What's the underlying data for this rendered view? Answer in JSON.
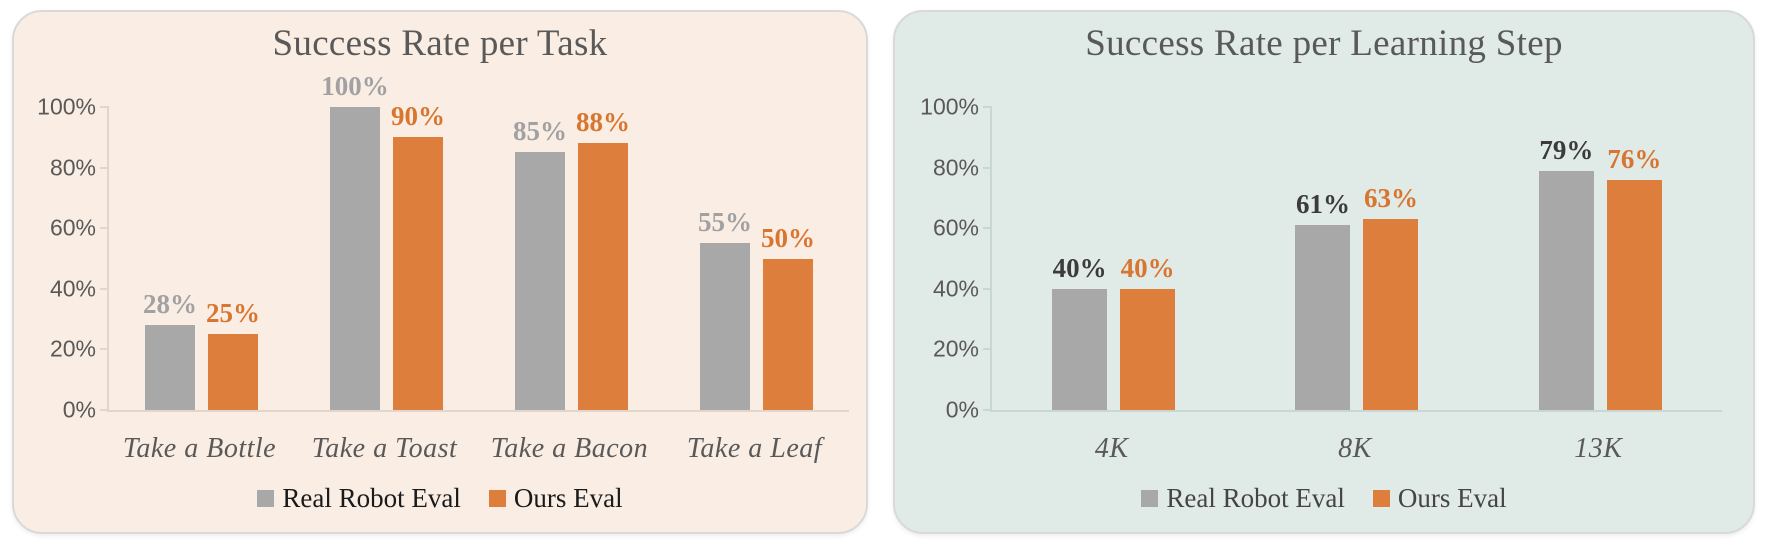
{
  "chart_data": [
    {
      "type": "bar",
      "title": "Success Rate per Task",
      "categories": [
        "Take a Bottle",
        "Take a Toast",
        "Take a Bacon",
        "Take a Leaf"
      ],
      "series": [
        {
          "name": "Real Robot Eval",
          "values": [
            28,
            100,
            85,
            55
          ],
          "color": "#A8A8A8",
          "label_color": "#A1A1A4"
        },
        {
          "name": "Ours Eval",
          "values": [
            25,
            90,
            88,
            50
          ],
          "color": "#DD7E3C",
          "label_color": "#D8752F"
        }
      ],
      "ylim": [
        0,
        100
      ],
      "yticks": [
        0,
        20,
        40,
        60,
        80,
        100
      ],
      "ytick_suffix": "%",
      "value_suffix": "%",
      "grid": false,
      "legend_position": "bottom",
      "panel_bg": "#FAEDE3",
      "axis_color": "#E2D5CB",
      "tick_text_color": "#595959",
      "legend_text_color": "#1A1A1A"
    },
    {
      "type": "bar",
      "title": "Success Rate per Learning Step",
      "categories": [
        "4K",
        "8K",
        "13K"
      ],
      "series": [
        {
          "name": "Real Robot Eval",
          "values": [
            40,
            61,
            79
          ],
          "color": "#A8A8A8",
          "label_color": "#3B3B3B"
        },
        {
          "name": "Ours Eval",
          "values": [
            40,
            63,
            76
          ],
          "color": "#DD7E3C",
          "label_color": "#D8752F"
        }
      ],
      "ylim": [
        0,
        100
      ],
      "yticks": [
        0,
        20,
        40,
        60,
        80,
        100
      ],
      "ytick_suffix": "%",
      "value_suffix": "%",
      "grid": false,
      "legend_position": "bottom",
      "panel_bg": "#E0EAE7",
      "axis_color": "#C9D6D1",
      "tick_text_color": "#595959",
      "legend_text_color": "#454545"
    }
  ]
}
